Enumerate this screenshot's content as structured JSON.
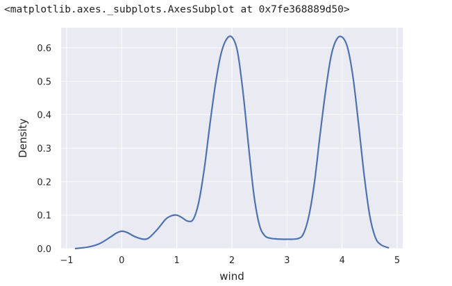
{
  "output_repr": "<matplotlib.axes._subplots.AxesSubplot at 0x7fe368889d50>",
  "colors": {
    "plot_background": "#eaeaf2",
    "grid": "#ffffff",
    "line": "#4c72b0"
  },
  "chart_data": {
    "type": "line",
    "kind": "kde",
    "xlabel": "wind",
    "ylabel": "Density",
    "xlim": [
      -1.1,
      5.1
    ],
    "ylim": [
      0,
      0.66
    ],
    "xticks": [
      -1,
      0,
      1,
      2,
      3,
      4,
      5
    ],
    "yticks": [
      0.0,
      0.1,
      0.2,
      0.3,
      0.4,
      0.5,
      0.6
    ],
    "ytick_labels": [
      "0.0",
      "0.1",
      "0.2",
      "0.3",
      "0.4",
      "0.5",
      "0.6"
    ],
    "grid": true,
    "series": [
      {
        "x": [
          -0.85,
          -0.6,
          -0.4,
          -0.2,
          -0.1,
          0.0,
          0.1,
          0.25,
          0.4,
          0.5,
          0.65,
          0.8,
          0.9,
          1.0,
          1.1,
          1.2,
          1.3,
          1.4,
          1.5,
          1.6,
          1.7,
          1.8,
          1.9,
          2.0,
          2.1,
          2.2,
          2.3,
          2.4,
          2.5,
          2.6,
          2.7,
          2.8,
          3.0,
          3.2,
          3.3,
          3.4,
          3.5,
          3.6,
          3.7,
          3.8,
          3.9,
          4.0,
          4.1,
          4.2,
          4.3,
          4.4,
          4.5,
          4.6,
          4.7,
          4.85
        ],
        "y": [
          0.0,
          0.005,
          0.015,
          0.035,
          0.046,
          0.052,
          0.048,
          0.035,
          0.028,
          0.033,
          0.058,
          0.088,
          0.098,
          0.1,
          0.092,
          0.082,
          0.088,
          0.14,
          0.24,
          0.37,
          0.49,
          0.58,
          0.625,
          0.632,
          0.59,
          0.47,
          0.31,
          0.16,
          0.07,
          0.038,
          0.031,
          0.029,
          0.028,
          0.03,
          0.045,
          0.1,
          0.2,
          0.34,
          0.47,
          0.575,
          0.625,
          0.632,
          0.6,
          0.51,
          0.37,
          0.22,
          0.1,
          0.035,
          0.012,
          0.002
        ]
      }
    ]
  }
}
